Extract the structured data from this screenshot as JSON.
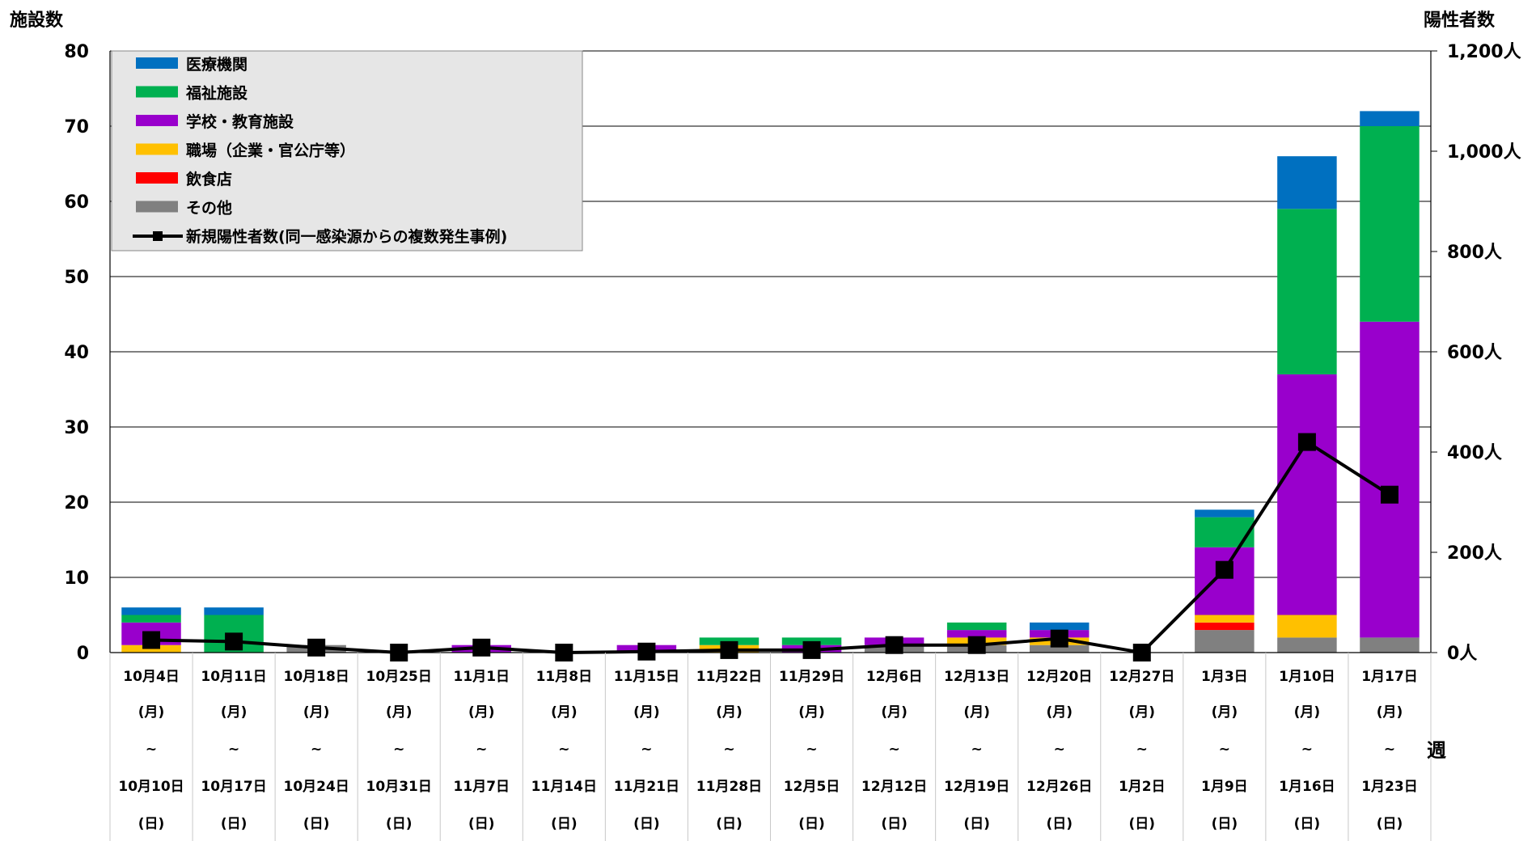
{
  "chart_data": {
    "type": "bar",
    "stacked": true,
    "ylabel_left": "施設数",
    "ylabel_right": "陽性者数",
    "xlabel": "週",
    "y_left_ticks": [
      "0",
      "10",
      "20",
      "30",
      "40",
      "50",
      "60",
      "70",
      "80"
    ],
    "y_right_ticks": [
      "0人",
      "200人",
      "400人",
      "600人",
      "800人",
      "1,000人",
      "1,200人"
    ],
    "ylim_left": [
      0,
      80
    ],
    "ylim_right": [
      0,
      1200
    ],
    "grid": true,
    "legend_position": "top-left",
    "categories": [
      {
        "start": "10月4日",
        "end": "10月10日"
      },
      {
        "start": "10月11日",
        "end": "10月17日"
      },
      {
        "start": "10月18日",
        "end": "10月24日"
      },
      {
        "start": "10月25日",
        "end": "10月31日"
      },
      {
        "start": "11月1日",
        "end": "11月7日"
      },
      {
        "start": "11月8日",
        "end": "11月14日"
      },
      {
        "start": "11月15日",
        "end": "11月21日"
      },
      {
        "start": "11月22日",
        "end": "11月28日"
      },
      {
        "start": "11月29日",
        "end": "12月5日"
      },
      {
        "start": "12月6日",
        "end": "12月12日"
      },
      {
        "start": "12月13日",
        "end": "12月19日"
      },
      {
        "start": "12月20日",
        "end": "12月26日"
      },
      {
        "start": "12月27日",
        "end": "1月2日"
      },
      {
        "start": "1月3日",
        "end": "1月9日"
      },
      {
        "start": "1月10日",
        "end": "1月16日"
      },
      {
        "start": "1月17日",
        "end": "1月23日"
      }
    ],
    "cat_row2": "(月)",
    "cat_row3": "~",
    "cat_row5": "(日)",
    "series": [
      {
        "name": "その他",
        "color": "#808080",
        "values": [
          0,
          0,
          1,
          0,
          0,
          0,
          0,
          0,
          0,
          1,
          1,
          1,
          0,
          3,
          2,
          2
        ]
      },
      {
        "name": "飲食店",
        "color": "#ff0000",
        "values": [
          0,
          0,
          0,
          0,
          0,
          0,
          0,
          0,
          0,
          0,
          0,
          0,
          0,
          1,
          0,
          0
        ]
      },
      {
        "name": "職場（企業・官公庁等）",
        "color": "#ffc000",
        "values": [
          1,
          0,
          0,
          0,
          0,
          0,
          0,
          1,
          0,
          0,
          1,
          1,
          0,
          1,
          3,
          0
        ]
      },
      {
        "name": "学校・教育施設",
        "color": "#9900cc",
        "values": [
          3,
          0,
          0,
          0,
          1,
          0,
          1,
          0,
          1,
          1,
          1,
          1,
          0,
          9,
          32,
          42
        ]
      },
      {
        "name": "福祉施設",
        "color": "#00b050",
        "values": [
          1,
          5,
          0,
          0,
          0,
          0,
          0,
          1,
          1,
          0,
          1,
          0,
          0,
          4,
          22,
          26
        ]
      },
      {
        "name": "医療機関",
        "color": "#0070c0",
        "values": [
          1,
          1,
          0,
          0,
          0,
          0,
          0,
          0,
          0,
          0,
          0,
          1,
          0,
          1,
          7,
          2
        ]
      }
    ],
    "line": {
      "name": "新規陽性者数(同一感染源からの複数発生事例)",
      "color": "#000000",
      "values": [
        25,
        22,
        10,
        0,
        10,
        0,
        2,
        5,
        5,
        15,
        15,
        28,
        0,
        165,
        420,
        315
      ]
    },
    "legend_order": [
      "医療機関",
      "福祉施設",
      "学校・教育施設",
      "職場（企業・官公庁等）",
      "飲食店",
      "その他",
      "新規陽性者数(同一感染源からの複数発生事例)"
    ]
  }
}
